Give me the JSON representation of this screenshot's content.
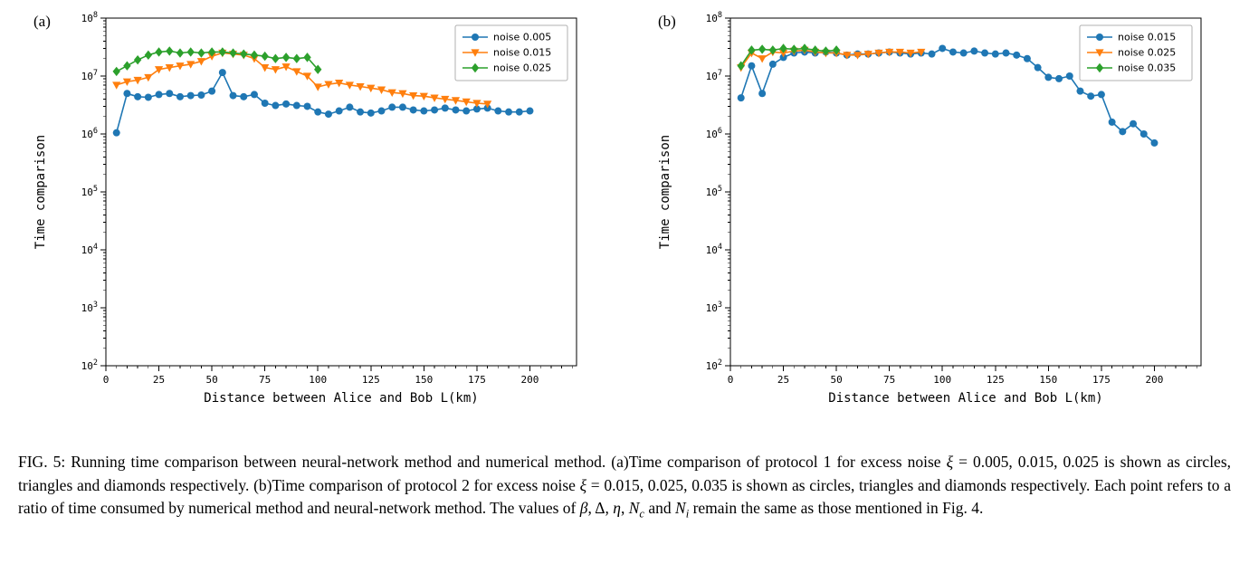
{
  "figure": {
    "panel_a_label": "(a)",
    "panel_b_label": "(b)"
  },
  "caption": {
    "segments": [
      {
        "text": "FIG. 5: Running time comparison between neural-network method and numerical method. (a)Time comparison of protocol 1 for excess noise "
      },
      {
        "text": "ξ",
        "italic": true
      },
      {
        "text": " = 0.005, 0.015, 0.025 is shown as circles, triangles and diamonds respectively. (b)Time comparison of protocol 2 for excess noise "
      },
      {
        "text": "ξ",
        "italic": true
      },
      {
        "text": " = 0.015, 0.025, 0.035 is shown as circles, triangles and diamonds respectively. Each point refers to a ratio of time consumed by numerical method and neural-network method. The values of "
      },
      {
        "text": "β",
        "italic": true
      },
      {
        "text": ", Δ, "
      },
      {
        "text": "η",
        "italic": true
      },
      {
        "text": ", "
      },
      {
        "text": "N",
        "italic": true
      },
      {
        "text": "c",
        "sub": true
      },
      {
        "text": " and "
      },
      {
        "text": "N",
        "italic": true
      },
      {
        "text": "i",
        "sub": true
      },
      {
        "text": " remain the same as those mentioned in Fig. 4."
      }
    ]
  },
  "chart_data": [
    {
      "type": "line",
      "panel": "a",
      "title": "",
      "xlabel": "Distance between Alice and Bob L(km)",
      "ylabel": "Time comparison",
      "xlim": [
        0,
        222
      ],
      "ylim": [
        100,
        100000000
      ],
      "ylog": true,
      "x_ticks": [
        0,
        25,
        50,
        75,
        100,
        125,
        150,
        175,
        200
      ],
      "y_tick_exponents": [
        2,
        3,
        4,
        5,
        6,
        7,
        8
      ],
      "grid": false,
      "legend_position": "upper right",
      "series": [
        {
          "name": "noise 0.005",
          "color": "#1f77b4",
          "marker": "circle",
          "x": [
            5,
            10,
            15,
            20,
            25,
            30,
            35,
            40,
            45,
            50,
            55,
            60,
            65,
            70,
            75,
            80,
            85,
            90,
            95,
            100,
            105,
            110,
            115,
            120,
            125,
            130,
            135,
            140,
            145,
            150,
            155,
            160,
            165,
            170,
            175,
            180,
            185,
            190,
            195,
            200
          ],
          "y": [
            1050000.0,
            5000000.0,
            4400000.0,
            4300000.0,
            4800000.0,
            5000000.0,
            4400000.0,
            4600000.0,
            4700000.0,
            5500000.0,
            11500000.0,
            4600000.0,
            4400000.0,
            4800000.0,
            3400000.0,
            3100000.0,
            3300000.0,
            3100000.0,
            3000000.0,
            2400000.0,
            2200000.0,
            2500000.0,
            2900000.0,
            2400000.0,
            2300000.0,
            2500000.0,
            2900000.0,
            2900000.0,
            2600000.0,
            2500000.0,
            2600000.0,
            2800000.0,
            2600000.0,
            2500000.0,
            2700000.0,
            2800000.0,
            2500000.0,
            2400000.0,
            2400000.0,
            2500000.0
          ]
        },
        {
          "name": "noise 0.015",
          "color": "#ff7f0e",
          "marker": "triangle-down",
          "x": [
            5,
            10,
            15,
            20,
            25,
            30,
            35,
            40,
            45,
            50,
            55,
            60,
            65,
            70,
            75,
            80,
            85,
            90,
            95,
            100,
            105,
            110,
            115,
            120,
            125,
            130,
            135,
            140,
            145,
            150,
            155,
            160,
            165,
            170,
            175,
            180
          ],
          "y": [
            7000000.0,
            8000000.0,
            8500000.0,
            9500000.0,
            13000000.0,
            14000000.0,
            15000000.0,
            16000000.0,
            18000000.0,
            22000000.0,
            25000000.0,
            24000000.0,
            23000000.0,
            20000000.0,
            14000000.0,
            13000000.0,
            14500000.0,
            12000000.0,
            10000000.0,
            6500000.0,
            7200000.0,
            7600000.0,
            7000000.0,
            6600000.0,
            6200000.0,
            5800000.0,
            5200000.0,
            5000000.0,
            4600000.0,
            4500000.0,
            4200000.0,
            4000000.0,
            3800000.0,
            3600000.0,
            3400000.0,
            3300000.0
          ]
        },
        {
          "name": "noise 0.025",
          "color": "#2ca02c",
          "marker": "diamond",
          "x": [
            5,
            10,
            15,
            20,
            25,
            30,
            35,
            40,
            45,
            50,
            55,
            60,
            65,
            70,
            75,
            80,
            85,
            90,
            95,
            100
          ],
          "y": [
            12000000.0,
            15000000.0,
            19000000.0,
            23000000.0,
            26000000.0,
            27000000.0,
            25000000.0,
            26000000.0,
            25000000.0,
            26000000.0,
            26000000.0,
            25000000.0,
            24000000.0,
            23000000.0,
            22000000.0,
            20000000.0,
            21000000.0,
            20000000.0,
            21000000.0,
            13000000.0
          ]
        }
      ]
    },
    {
      "type": "line",
      "panel": "b",
      "title": "",
      "xlabel": "Distance between Alice and Bob L(km)",
      "ylabel": "Time comparison",
      "xlim": [
        0,
        222
      ],
      "ylim": [
        100,
        100000000
      ],
      "ylog": true,
      "x_ticks": [
        0,
        25,
        50,
        75,
        100,
        125,
        150,
        175,
        200
      ],
      "y_tick_exponents": [
        2,
        3,
        4,
        5,
        6,
        7,
        8
      ],
      "grid": false,
      "legend_position": "upper right",
      "series": [
        {
          "name": "noise 0.015",
          "color": "#1f77b4",
          "marker": "circle",
          "x": [
            5,
            10,
            15,
            20,
            25,
            30,
            35,
            40,
            45,
            50,
            55,
            60,
            65,
            70,
            75,
            80,
            85,
            90,
            95,
            100,
            105,
            110,
            115,
            120,
            125,
            130,
            135,
            140,
            145,
            150,
            155,
            160,
            165,
            170,
            175,
            180,
            185,
            190,
            195,
            200
          ],
          "y": [
            4200000.0,
            15000000.0,
            5000000.0,
            16000000.0,
            21000000.0,
            25000000.0,
            26000000.0,
            25000000.0,
            26000000.0,
            25000000.0,
            23000000.0,
            24000000.0,
            24000000.0,
            25000000.0,
            26000000.0,
            25000000.0,
            24000000.0,
            25000000.0,
            24000000.0,
            30000000.0,
            26000000.0,
            25000000.0,
            27000000.0,
            25000000.0,
            24000000.0,
            25000000.0,
            23000000.0,
            20000000.0,
            14000000.0,
            9500000.0,
            9000000.0,
            10000000.0,
            5500000.0,
            4500000.0,
            4800000.0,
            1600000.0,
            1100000.0,
            1500000.0,
            1000000.0,
            700000.0
          ]
        },
        {
          "name": "noise 0.025",
          "color": "#ff7f0e",
          "marker": "triangle-down",
          "x": [
            5,
            10,
            15,
            20,
            25,
            30,
            35,
            40,
            45,
            50,
            55,
            60,
            65,
            70,
            75,
            80,
            85,
            90
          ],
          "y": [
            14000000.0,
            25000000.0,
            20000000.0,
            26000000.0,
            25000000.0,
            27000000.0,
            28000000.0,
            26000000.0,
            25000000.0,
            25000000.0,
            23000000.0,
            23000000.0,
            24000000.0,
            25000000.0,
            26000000.0,
            26000000.0,
            25000000.0,
            26000000.0
          ]
        },
        {
          "name": "noise 0.035",
          "color": "#2ca02c",
          "marker": "diamond",
          "x": [
            5,
            10,
            15,
            20,
            25,
            30,
            35,
            40,
            45,
            50
          ],
          "y": [
            15000000.0,
            28000000.0,
            29000000.0,
            28000000.0,
            30000000.0,
            29000000.0,
            30000000.0,
            28000000.0,
            27000000.0,
            28000000.0
          ]
        }
      ]
    }
  ]
}
